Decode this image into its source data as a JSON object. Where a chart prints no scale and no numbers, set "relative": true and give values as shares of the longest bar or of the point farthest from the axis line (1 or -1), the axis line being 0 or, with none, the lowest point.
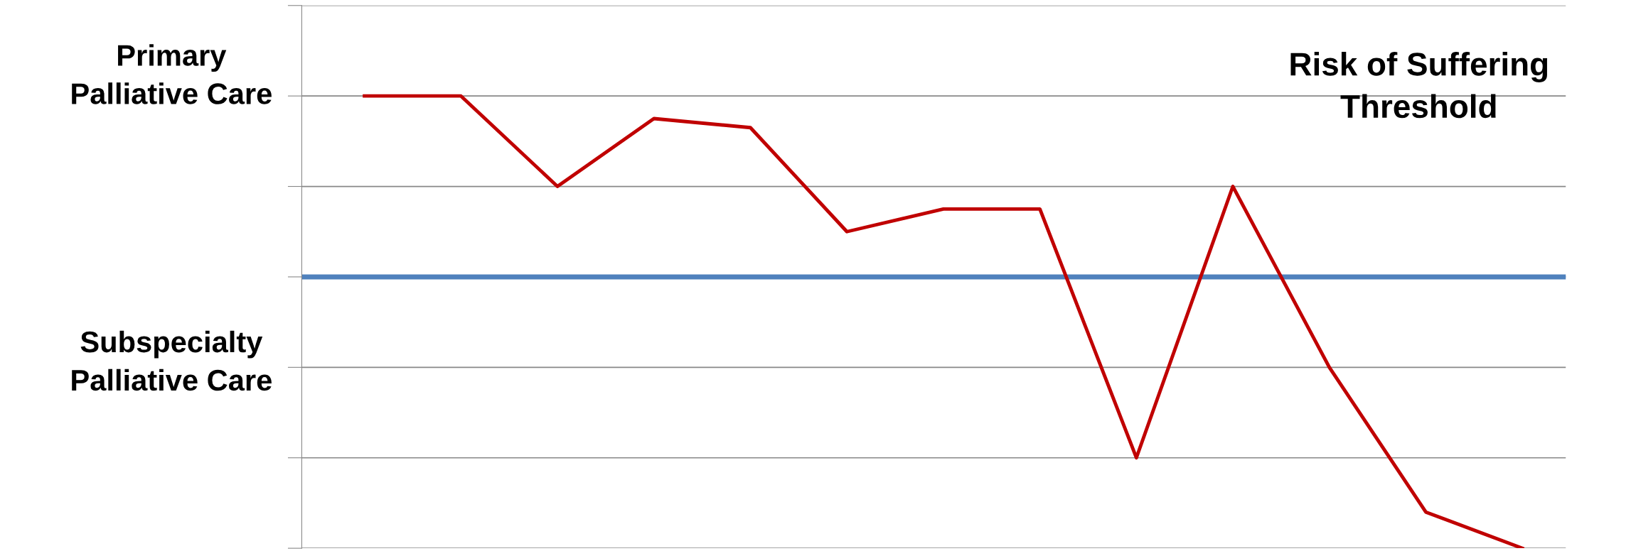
{
  "chart_data": {
    "type": "line",
    "relative": true,
    "tick_labels": false,
    "grid": "y",
    "legend": false,
    "marker": "none",
    "line_style": "solid",
    "categories": [
      null,
      null,
      null,
      null,
      null,
      null,
      null,
      null,
      null,
      null,
      null,
      null,
      null
    ],
    "series": [
      {
        "color": "#c00000",
        "values": [
          1,
          1,
          0.8,
          0.95,
          0.93,
          0.7,
          0.75,
          0.75,
          0.2,
          0.8,
          0.4,
          0.08,
          0
        ]
      }
    ],
    "ref_lines": [
      {
        "axis": "y",
        "value": 0.6,
        "color": "#4f81bd",
        "line_style": "solid"
      }
    ],
    "annotations": [
      "Primary Palliative Care",
      "Subspecialty Palliative Care",
      "Risk of Suffering Threshold"
    ]
  }
}
